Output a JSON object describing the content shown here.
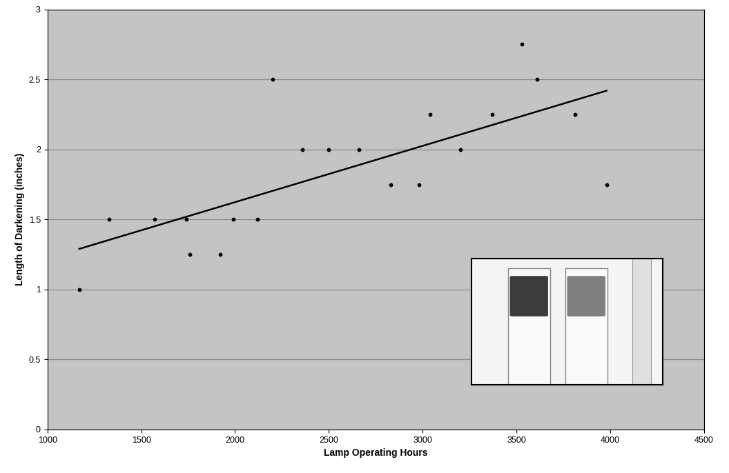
{
  "chart_data": {
    "type": "scatter",
    "x_label": "Lamp Operating Hours",
    "y_label": "Length of Darkening (inches)",
    "x": [
      1170,
      1330,
      1570,
      1740,
      1760,
      1920,
      1990,
      2120,
      2200,
      2360,
      2500,
      2660,
      2830,
      2980,
      3040,
      3200,
      3370,
      3530,
      3610,
      3810,
      3980
    ],
    "values": [
      1.0,
      1.5,
      1.5,
      1.5,
      1.25,
      1.25,
      1.5,
      1.5,
      2.5,
      2.0,
      2.0,
      2.0,
      1.75,
      1.75,
      2.25,
      2.0,
      2.25,
      2.75,
      2.5,
      2.25,
      1.75
    ],
    "color": "#000000",
    "marker": "o",
    "trend_line": {
      "x": [
        1170,
        3980
      ],
      "values": [
        1.29,
        2.42
      ],
      "color": "#000000",
      "line_style": "solid"
    },
    "xlim": [
      1000,
      4500
    ],
    "xticks": [
      1000,
      1500,
      2000,
      2500,
      3000,
      3500,
      4000,
      4500
    ],
    "ylim": [
      0,
      3
    ],
    "yticks": [
      0,
      0.5,
      1,
      1.5,
      2,
      2.5,
      3
    ],
    "grid": true
  }
}
